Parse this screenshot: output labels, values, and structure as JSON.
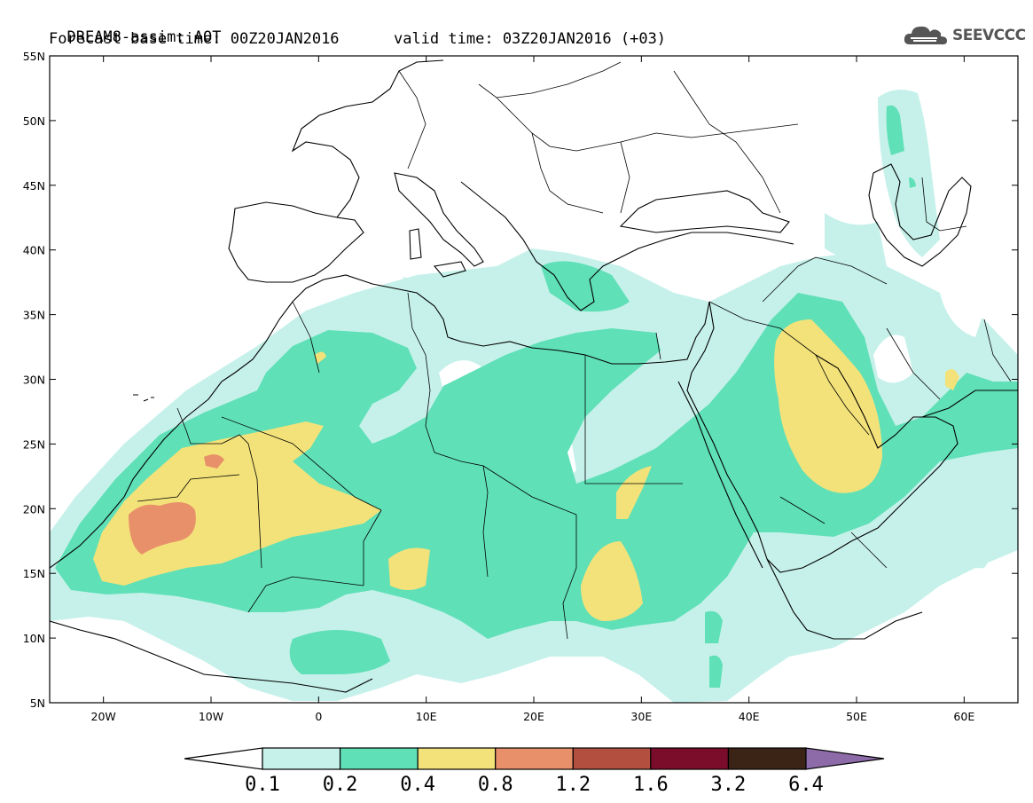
{
  "header": {
    "title": "DREAM8-assim: AOT",
    "base_time_label": "Forecast base time:",
    "base_time": "00Z20JAN2016",
    "valid_time_label": "valid time:",
    "valid_time": "03Z20JAN2016 (+03)"
  },
  "logo": {
    "text": "SEEVCCC",
    "icon": "cloud-icon"
  },
  "map": {
    "projection": "lat-lon",
    "lon_range": [
      -25,
      65
    ],
    "lat_range": [
      5,
      55
    ],
    "lon_ticks": [
      "20W",
      "10W",
      "0",
      "10E",
      "20E",
      "30E",
      "40E",
      "50E",
      "60E"
    ],
    "lat_ticks": [
      "55N",
      "50N",
      "45N",
      "40N",
      "35N",
      "30N",
      "25N",
      "20N",
      "15N",
      "10N",
      "5N"
    ],
    "variable": "AOT"
  },
  "colorbar": {
    "labels": [
      "0.1",
      "0.2",
      "0.4",
      "0.8",
      "1.2",
      "1.6",
      "3.2",
      "6.4"
    ],
    "colors": [
      "#ffffff",
      "#c6f1ea",
      "#5fe0b7",
      "#f3e27a",
      "#e8906a",
      "#b34f3e",
      "#7c0d2a",
      "#3b2315",
      "#8d6aa8"
    ]
  }
}
